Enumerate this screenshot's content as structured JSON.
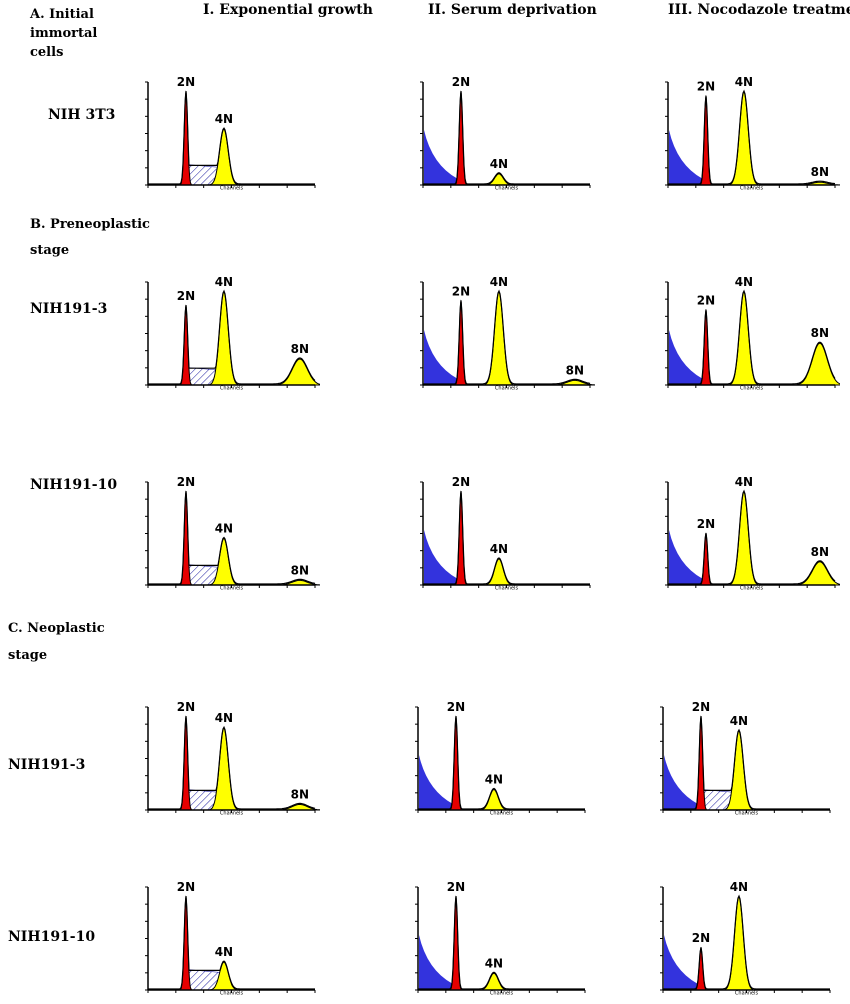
{
  "column_titles": [
    "I. Exponential growth",
    "II. Serum deprivation",
    "III. Nocodazole treatmer"
  ],
  "sections": {
    "A": {
      "label": "A. Initial",
      "label_line2": "immortal",
      "label_line3": "cells"
    },
    "B": {
      "label": "B. Preneoplastic",
      "label_line2": "stage"
    },
    "C": {
      "label": "C. Neoplastic",
      "label_line2": "stage"
    }
  },
  "row_labels": [
    "NIH 3T3",
    "NIH191-3",
    "NIH191-10",
    "NIH191-3",
    "NIH191-10"
  ],
  "axis_caption": "Channels",
  "colors": {
    "g1_peak": "#e60000",
    "g2m_peak": "#ffff00",
    "sub_g1": "#3333dd",
    "s_phase_hatch": "#1a1aa0",
    "trace": "#000000"
  },
  "chart_data": [
    {
      "type": "area",
      "row": "NIH 3T3",
      "condition": "I. Exponential growth",
      "peaks": [
        {
          "label": "2N",
          "position": 50,
          "height": 1.0
        },
        {
          "label": "4N",
          "position": 100,
          "height": 0.6
        }
      ],
      "s_phase": true,
      "sub_g1": false
    },
    {
      "type": "area",
      "row": "NIH 3T3",
      "condition": "II. Serum deprivation",
      "peaks": [
        {
          "label": "2N",
          "position": 50,
          "height": 1.0
        },
        {
          "label": "4N",
          "position": 100,
          "height": 0.12
        }
      ],
      "s_phase": false,
      "sub_g1": true
    },
    {
      "type": "area",
      "row": "NIH 3T3",
      "condition": "III. Nocodazole treatmer",
      "peaks": [
        {
          "label": "2N",
          "position": 50,
          "height": 0.95
        },
        {
          "label": "4N",
          "position": 100,
          "height": 1.0
        },
        {
          "label": "8N",
          "position": 200,
          "height": 0.03
        }
      ],
      "s_phase": false,
      "sub_g1": true
    },
    {
      "type": "area",
      "row": "NIH191-3 (preneoplastic)",
      "condition": "I. Exponential growth",
      "peaks": [
        {
          "label": "2N",
          "position": 50,
          "height": 0.85
        },
        {
          "label": "4N",
          "position": 100,
          "height": 1.0
        },
        {
          "label": "8N",
          "position": 200,
          "height": 0.28
        }
      ],
      "s_phase": true,
      "sub_g1": false
    },
    {
      "type": "area",
      "row": "NIH191-3 (preneoplastic)",
      "condition": "II. Serum deprivation",
      "peaks": [
        {
          "label": "2N",
          "position": 50,
          "height": 0.9
        },
        {
          "label": "4N",
          "position": 100,
          "height": 1.0
        },
        {
          "label": "8N",
          "position": 200,
          "height": 0.05
        }
      ],
      "s_phase": false,
      "sub_g1": true
    },
    {
      "type": "area",
      "row": "NIH191-3 (preneoplastic)",
      "condition": "III. Nocodazole treatmer",
      "peaks": [
        {
          "label": "2N",
          "position": 50,
          "height": 0.8
        },
        {
          "label": "4N",
          "position": 100,
          "height": 1.0
        },
        {
          "label": "8N",
          "position": 200,
          "height": 0.45
        }
      ],
      "s_phase": false,
      "sub_g1": true
    },
    {
      "type": "area",
      "row": "NIH191-10 (preneoplastic)",
      "condition": "I. Exponential growth",
      "peaks": [
        {
          "label": "2N",
          "position": 50,
          "height": 1.0
        },
        {
          "label": "4N",
          "position": 100,
          "height": 0.5
        },
        {
          "label": "8N",
          "position": 200,
          "height": 0.05
        }
      ],
      "s_phase": true,
      "sub_g1": false
    },
    {
      "type": "area",
      "row": "NIH191-10 (preneoplastic)",
      "condition": "II. Serum deprivation",
      "peaks": [
        {
          "label": "2N",
          "position": 50,
          "height": 1.0
        },
        {
          "label": "4N",
          "position": 100,
          "height": 0.28
        }
      ],
      "s_phase": false,
      "sub_g1": true
    },
    {
      "type": "area",
      "row": "NIH191-10 (preneoplastic)",
      "condition": "III. Nocodazole treatmer",
      "peaks": [
        {
          "label": "2N",
          "position": 50,
          "height": 0.55
        },
        {
          "label": "4N",
          "position": 100,
          "height": 1.0
        },
        {
          "label": "8N",
          "position": 200,
          "height": 0.25
        }
      ],
      "s_phase": false,
      "sub_g1": true
    },
    {
      "type": "area",
      "row": "NIH191-3 (neoplastic)",
      "condition": "I. Exponential growth",
      "peaks": [
        {
          "label": "2N",
          "position": 50,
          "height": 1.0
        },
        {
          "label": "4N",
          "position": 100,
          "height": 0.88
        },
        {
          "label": "8N",
          "position": 200,
          "height": 0.06
        }
      ],
      "s_phase": true,
      "sub_g1": false
    },
    {
      "type": "area",
      "row": "NIH191-3 (neoplastic)",
      "condition": "II. Serum deprivation",
      "peaks": [
        {
          "label": "2N",
          "position": 50,
          "height": 1.0
        },
        {
          "label": "4N",
          "position": 100,
          "height": 0.22
        }
      ],
      "s_phase": false,
      "sub_g1": true
    },
    {
      "type": "area",
      "row": "NIH191-3 (neoplastic)",
      "condition": "III. Nocodazole treatmer",
      "peaks": [
        {
          "label": "2N",
          "position": 50,
          "height": 1.0
        },
        {
          "label": "4N",
          "position": 100,
          "height": 0.85
        }
      ],
      "s_phase": true,
      "sub_g1": true
    },
    {
      "type": "area",
      "row": "NIH191-10 (neoplastic)",
      "condition": "I. Exponential growth",
      "peaks": [
        {
          "label": "2N",
          "position": 50,
          "height": 1.0
        },
        {
          "label": "4N",
          "position": 100,
          "height": 0.3
        }
      ],
      "s_phase": true,
      "sub_g1": false
    },
    {
      "type": "area",
      "row": "NIH191-10 (neoplastic)",
      "condition": "II. Serum deprivation",
      "peaks": [
        {
          "label": "2N",
          "position": 50,
          "height": 1.0
        },
        {
          "label": "4N",
          "position": 100,
          "height": 0.18
        }
      ],
      "s_phase": false,
      "sub_g1": true
    },
    {
      "type": "area",
      "row": "NIH191-10 (neoplastic)",
      "condition": "III. Nocodazole treatmer",
      "peaks": [
        {
          "label": "2N",
          "position": 50,
          "height": 0.45
        },
        {
          "label": "4N",
          "position": 100,
          "height": 1.0
        }
      ],
      "s_phase": false,
      "sub_g1": true
    }
  ]
}
